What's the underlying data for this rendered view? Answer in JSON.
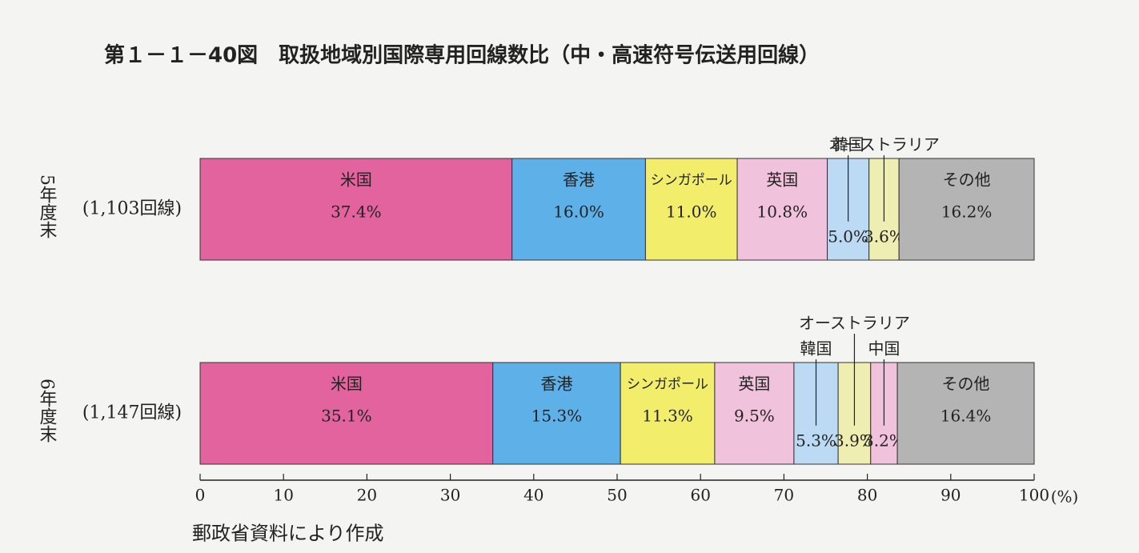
{
  "chart_data": {
    "type": "stacked-bar-horizontal",
    "title": "第１－１－40図　取扱地域別国際専用回線数比（中・高速符号伝送用回線）",
    "categories": [
      "5年度末",
      "6年度末"
    ],
    "category_sublabels": [
      "(1,103回線)",
      "(1,147回線)"
    ],
    "series": [
      {
        "name": "米国",
        "color": "#e2639d",
        "values": [
          37.4,
          35.1
        ],
        "value_labels": [
          "37.4%",
          "35.1%"
        ]
      },
      {
        "name": "香港",
        "color": "#5eb0e8",
        "values": [
          16.0,
          15.3
        ],
        "value_labels": [
          "16.0%",
          "15.3%"
        ]
      },
      {
        "name": "シンガポール",
        "color": "#f2ee6c",
        "values": [
          11.0,
          11.3
        ],
        "value_labels": [
          "11.0%",
          "11.3%"
        ]
      },
      {
        "name": "英国",
        "color": "#f1c2dc",
        "values": [
          10.8,
          9.5
        ],
        "value_labels": [
          "10.8%",
          "9.5%"
        ]
      },
      {
        "name": "韓国",
        "color": "#bcdaf4",
        "values": [
          5.0,
          5.3
        ],
        "value_labels": [
          "5.0%",
          "5.3%"
        ]
      },
      {
        "name": "オーストラリア",
        "color": "#eeeeb2",
        "values": [
          3.6,
          3.9
        ],
        "value_labels": [
          "3.6%",
          "3.9%"
        ]
      },
      {
        "name": "中国",
        "color": "#f1c2dc",
        "values": [
          null,
          3.2
        ],
        "value_labels": [
          null,
          "3.2%"
        ]
      },
      {
        "name": "その他",
        "color": "#b4b4b4",
        "values": [
          16.2,
          16.4
        ],
        "value_labels": [
          "16.2%",
          "16.4%"
        ]
      }
    ],
    "xlim": [
      0,
      100
    ],
    "xticks": [
      0,
      10,
      20,
      30,
      40,
      50,
      60,
      70,
      80,
      90,
      100
    ],
    "x_unit": "(%)",
    "source": "郵政省資料により作成"
  }
}
